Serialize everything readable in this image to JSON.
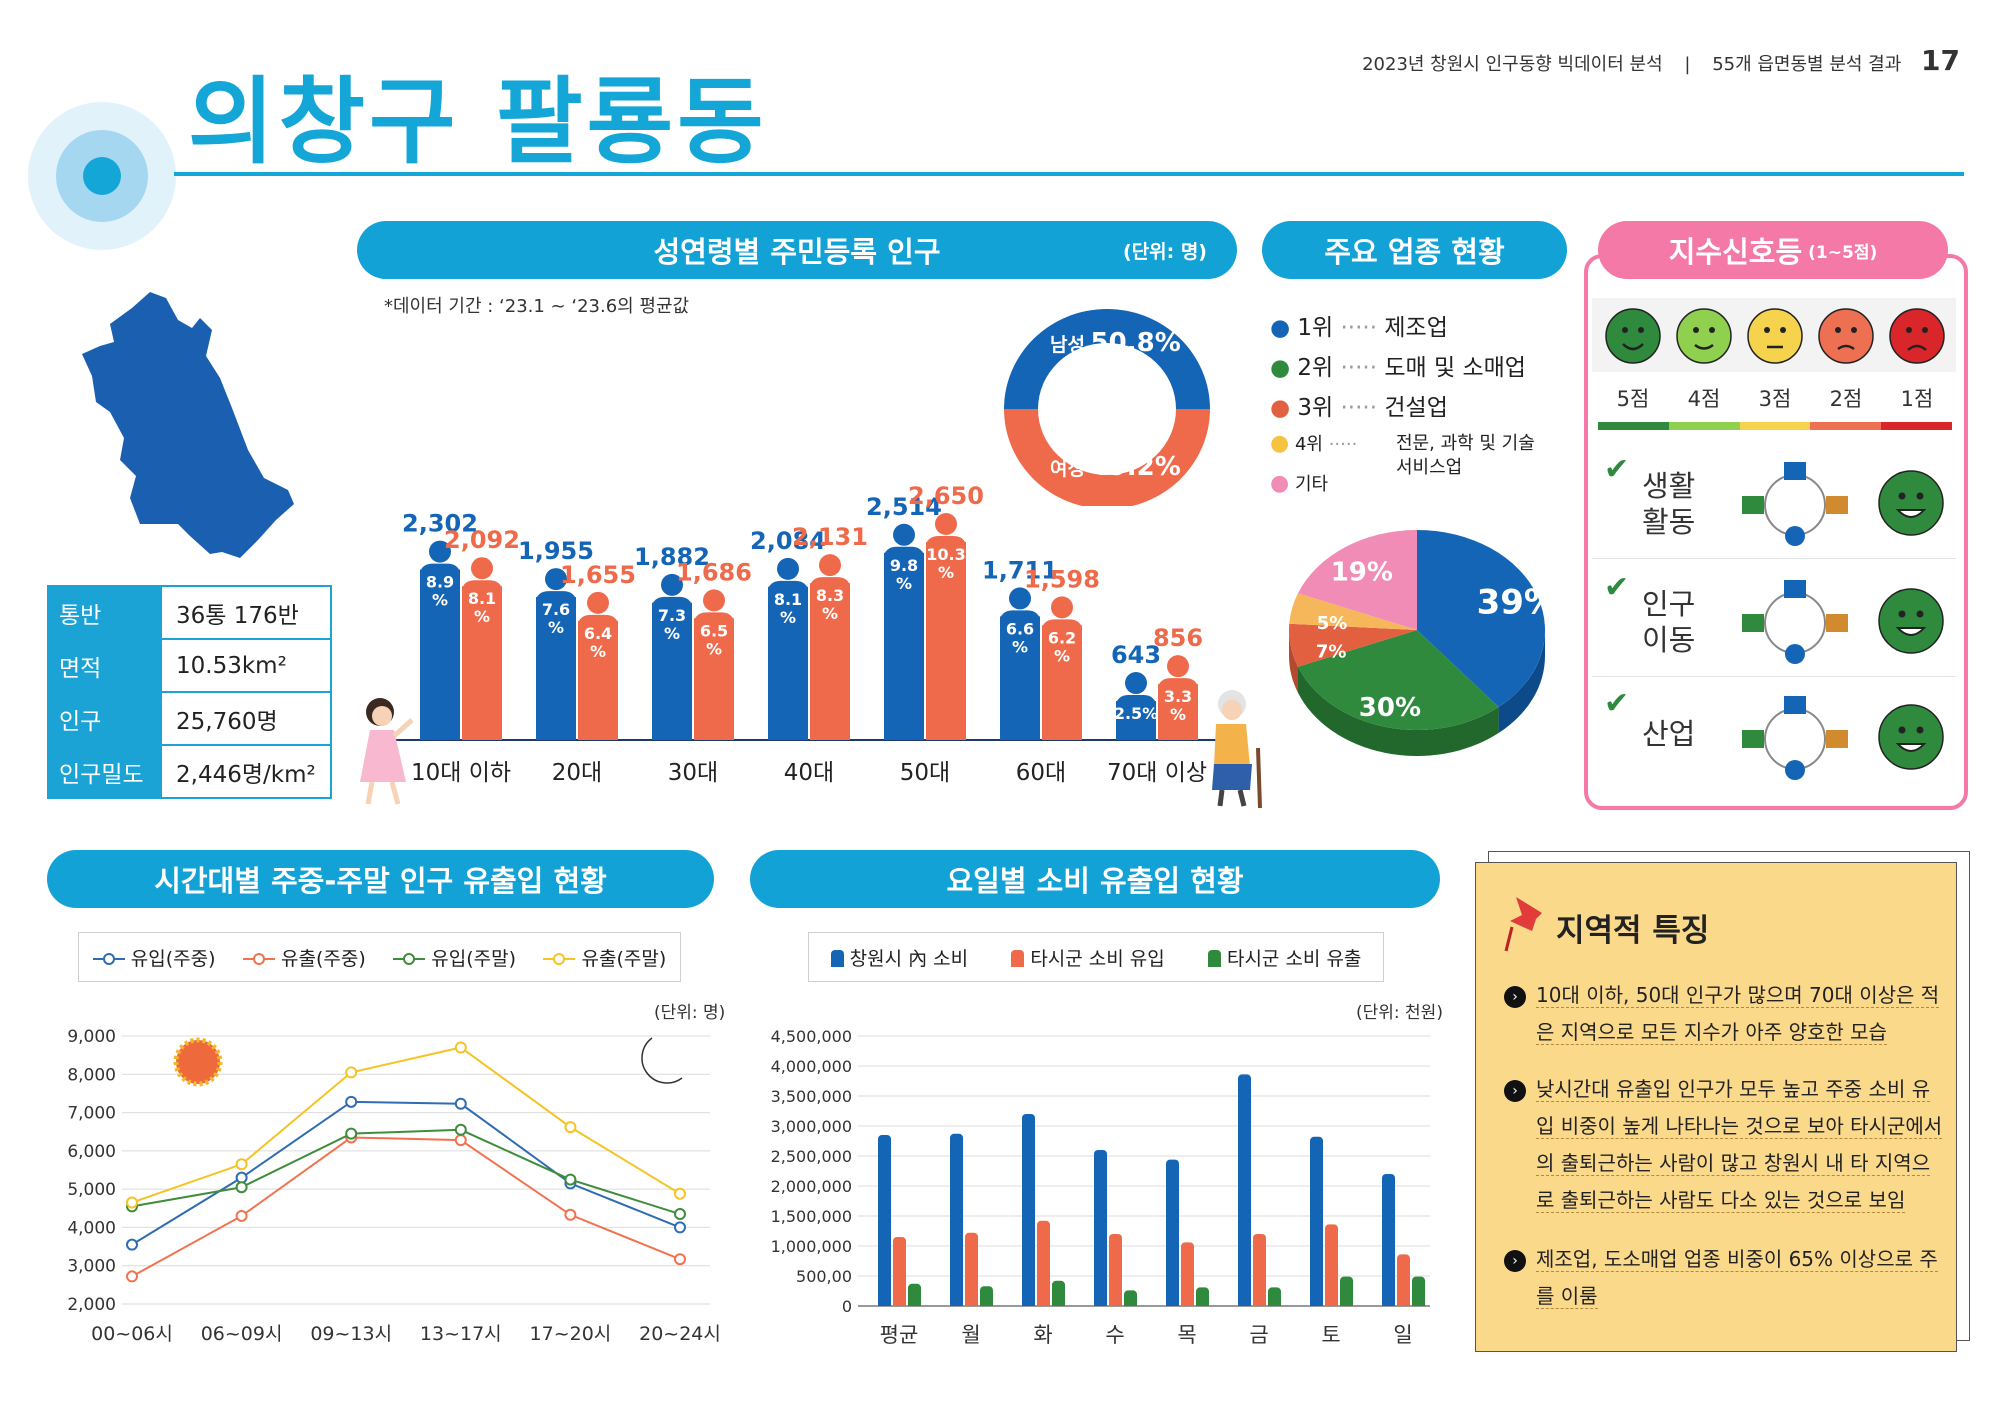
{
  "header": {
    "title": "의창구 팔룡동",
    "report": "2023년 창원시 인구동향 빅데이터 분석",
    "section": "55개 읍면동별 분석 결과",
    "page": "17"
  },
  "colors": {
    "blue": "#1565b6",
    "orange": "#ef6a4b",
    "green": "#2f8a3e",
    "yellow": "#f5c242",
    "pink": "#f08cb5",
    "accent": "#13a2d6"
  },
  "info": [
    {
      "key": "통반",
      "value": "36통 176반"
    },
    {
      "key": "면적",
      "value": "10.53km²"
    },
    {
      "key": "인구",
      "value": "25,760명"
    },
    {
      "key": "인구밀도",
      "value": "2,446명/km²"
    }
  ],
  "population": {
    "title": "성연령별 주민등록 인구",
    "unit": "(단위: 명)",
    "note": "*데이터 기간 : ‘23.1 ~ ‘23.6의 평균값",
    "male_label": "남성",
    "male_pct": "50.8%",
    "female_label": "여성",
    "female_pct": "49.2%"
  },
  "industry": {
    "title": "주요 업종 현황",
    "legend": [
      {
        "rank": "1위",
        "name": "제조업"
      },
      {
        "rank": "2위",
        "name": "도매 및 소매업"
      },
      {
        "rank": "3위",
        "name": "건설업"
      },
      {
        "rank": "4위",
        "name": "전문, 과학 및 기술 서비스업"
      },
      {
        "rank": "기타",
        "name": ""
      }
    ]
  },
  "signal": {
    "title": "지수신호등",
    "subtitle": "(1~5점)",
    "scores": [
      "5점",
      "4점",
      "3점",
      "2점",
      "1점"
    ],
    "rows": [
      {
        "label": "생활 활동",
        "score": 5
      },
      {
        "label": "인구 이동",
        "score": 5
      },
      {
        "label": "산업",
        "score": 5
      }
    ]
  },
  "hourly": {
    "title": "시간대별 주중-주말 인구 유출입 현황",
    "unit": "(단위: 명)"
  },
  "weekday": {
    "title": "요일별 소비 유출입 현황",
    "unit": "(단위: 천원)"
  },
  "feature": {
    "title": "지역적 특징",
    "items": [
      "10대 이하, 50대 인구가 많으며 70대 이상은 적은 지역으로 모든 지수가 아주 양호한 모습",
      "낮시간대 유출입 인구가 모두 높고 주중 소비 유입 비중이 높게 나타나는 것으로 보아 타시군에서의 출퇴근하는 사람이 많고 창원시 내 타 지역으로 출퇴근하는 사람도 다소 있는 것으로 보임",
      "제조업, 도소매업 업종 비중이 65% 이상으로 주를 이룸"
    ]
  },
  "chart_data": [
    {
      "type": "bar",
      "title": "성연령별 주민등록 인구",
      "categories": [
        "10대 이하",
        "20대",
        "30대",
        "40대",
        "50대",
        "60대",
        "70대 이상"
      ],
      "series": [
        {
          "name": "남성",
          "values": [
            2302,
            1955,
            1882,
            2084,
            2514,
            1711,
            643
          ],
          "labels": [
            "2,302",
            "1,955",
            "1,882",
            "2,084",
            "2,514",
            "1,711",
            "643"
          ],
          "pct": [
            "8.9",
            "7.6",
            "7.3",
            "8.1",
            "9.8",
            "6.6",
            "2.5%"
          ]
        },
        {
          "name": "여성",
          "values": [
            2092,
            1655,
            1686,
            2131,
            2650,
            1598,
            856
          ],
          "labels": [
            "2,092",
            "1,655",
            "1,686",
            "2,131",
            "2,650",
            "1,598",
            "856"
          ],
          "pct": [
            "8.1",
            "6.4",
            "6.5",
            "8.3",
            "10.3",
            "6.2",
            "3.3"
          ]
        }
      ]
    },
    {
      "type": "pie",
      "title": "주요 업종 현황",
      "labels": [
        "1위",
        "2위",
        "3위",
        "4위",
        "기타"
      ],
      "values": [
        39,
        30,
        7,
        5,
        19
      ],
      "value_labels": [
        "39%",
        "30%",
        "7%",
        "5%",
        "19%"
      ]
    },
    {
      "type": "line",
      "title": "시간대별 주중-주말 인구 유출입 현황",
      "x": [
        "00~06시",
        "06~09시",
        "09~13시",
        "13~17시",
        "17~20시",
        "20~24시"
      ],
      "ylim": [
        2000,
        9000
      ],
      "yticks": [
        "9,000",
        "8,000",
        "7,000",
        "6,000",
        "5,000",
        "4,000",
        "3,000",
        "2,000"
      ],
      "series": [
        {
          "name": "유입(주중)",
          "values": [
            3550,
            5300,
            7280,
            7230,
            5150,
            4000
          ]
        },
        {
          "name": "유출(주중)",
          "values": [
            2720,
            4300,
            6350,
            6280,
            4330,
            3170
          ]
        },
        {
          "name": "유입(주말)",
          "values": [
            4550,
            5050,
            6450,
            6550,
            5250,
            4350
          ]
        },
        {
          "name": "유출(주말)",
          "values": [
            4650,
            5650,
            8050,
            8700,
            6620,
            4880
          ]
        }
      ]
    },
    {
      "type": "bar",
      "title": "요일별 소비 유출입 현황",
      "categories": [
        "평균",
        "월",
        "화",
        "수",
        "목",
        "금",
        "토",
        "일"
      ],
      "ylim": [
        0,
        4500000
      ],
      "yticks": [
        "4,500,000",
        "4,000,000",
        "3,500,000",
        "3,000,000",
        "2,500,000",
        "2,000,000",
        "1,500,000",
        "1,000,000",
        "500,00",
        "0"
      ],
      "series": [
        {
          "name": "창원시 內 소비",
          "values": [
            2850000,
            2870000,
            3200000,
            2600000,
            2440000,
            3860000,
            2820000,
            2200000
          ]
        },
        {
          "name": "타시군 소비 유입",
          "values": [
            1150000,
            1220000,
            1420000,
            1200000,
            1060000,
            1200000,
            1360000,
            860000
          ]
        },
        {
          "name": "타시군 소비 유출",
          "values": [
            370000,
            330000,
            420000,
            260000,
            310000,
            310000,
            490000,
            490000
          ]
        }
      ]
    }
  ]
}
